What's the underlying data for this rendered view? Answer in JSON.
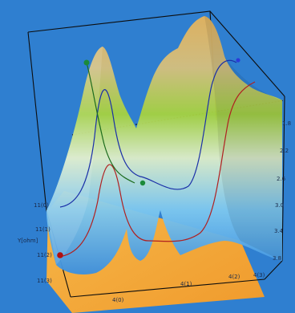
{
  "colors": {
    "background": "#2f7fd0",
    "floor": "#f2a93a",
    "surface_low": "#4aa8e8",
    "surface_mid": "#9ccc3a",
    "surface_high": "#d9b77a",
    "curve_blue": "#1a2fa8",
    "curve_red": "#b02020",
    "curve_green": "#1c6b1c",
    "marker_green": "#1b8a3a",
    "marker_red": "#b01010",
    "marker_blue": "#2b3ad8"
  },
  "chart_data": {
    "type": "surface3d",
    "title": "",
    "y_axis_label": "Y[ohm]",
    "y_ticks": [
      "11(0)",
      "11(1)",
      "11(2)",
      "11(3)"
    ],
    "x_ticks": [
      "4(0)",
      "4(1)",
      "4(2)",
      "4(3)"
    ],
    "z_ticks": [
      "3.8",
      "3.4",
      "3.0",
      "2.6",
      "2.2",
      "1.8"
    ],
    "grid": true,
    "legend": "none"
  }
}
